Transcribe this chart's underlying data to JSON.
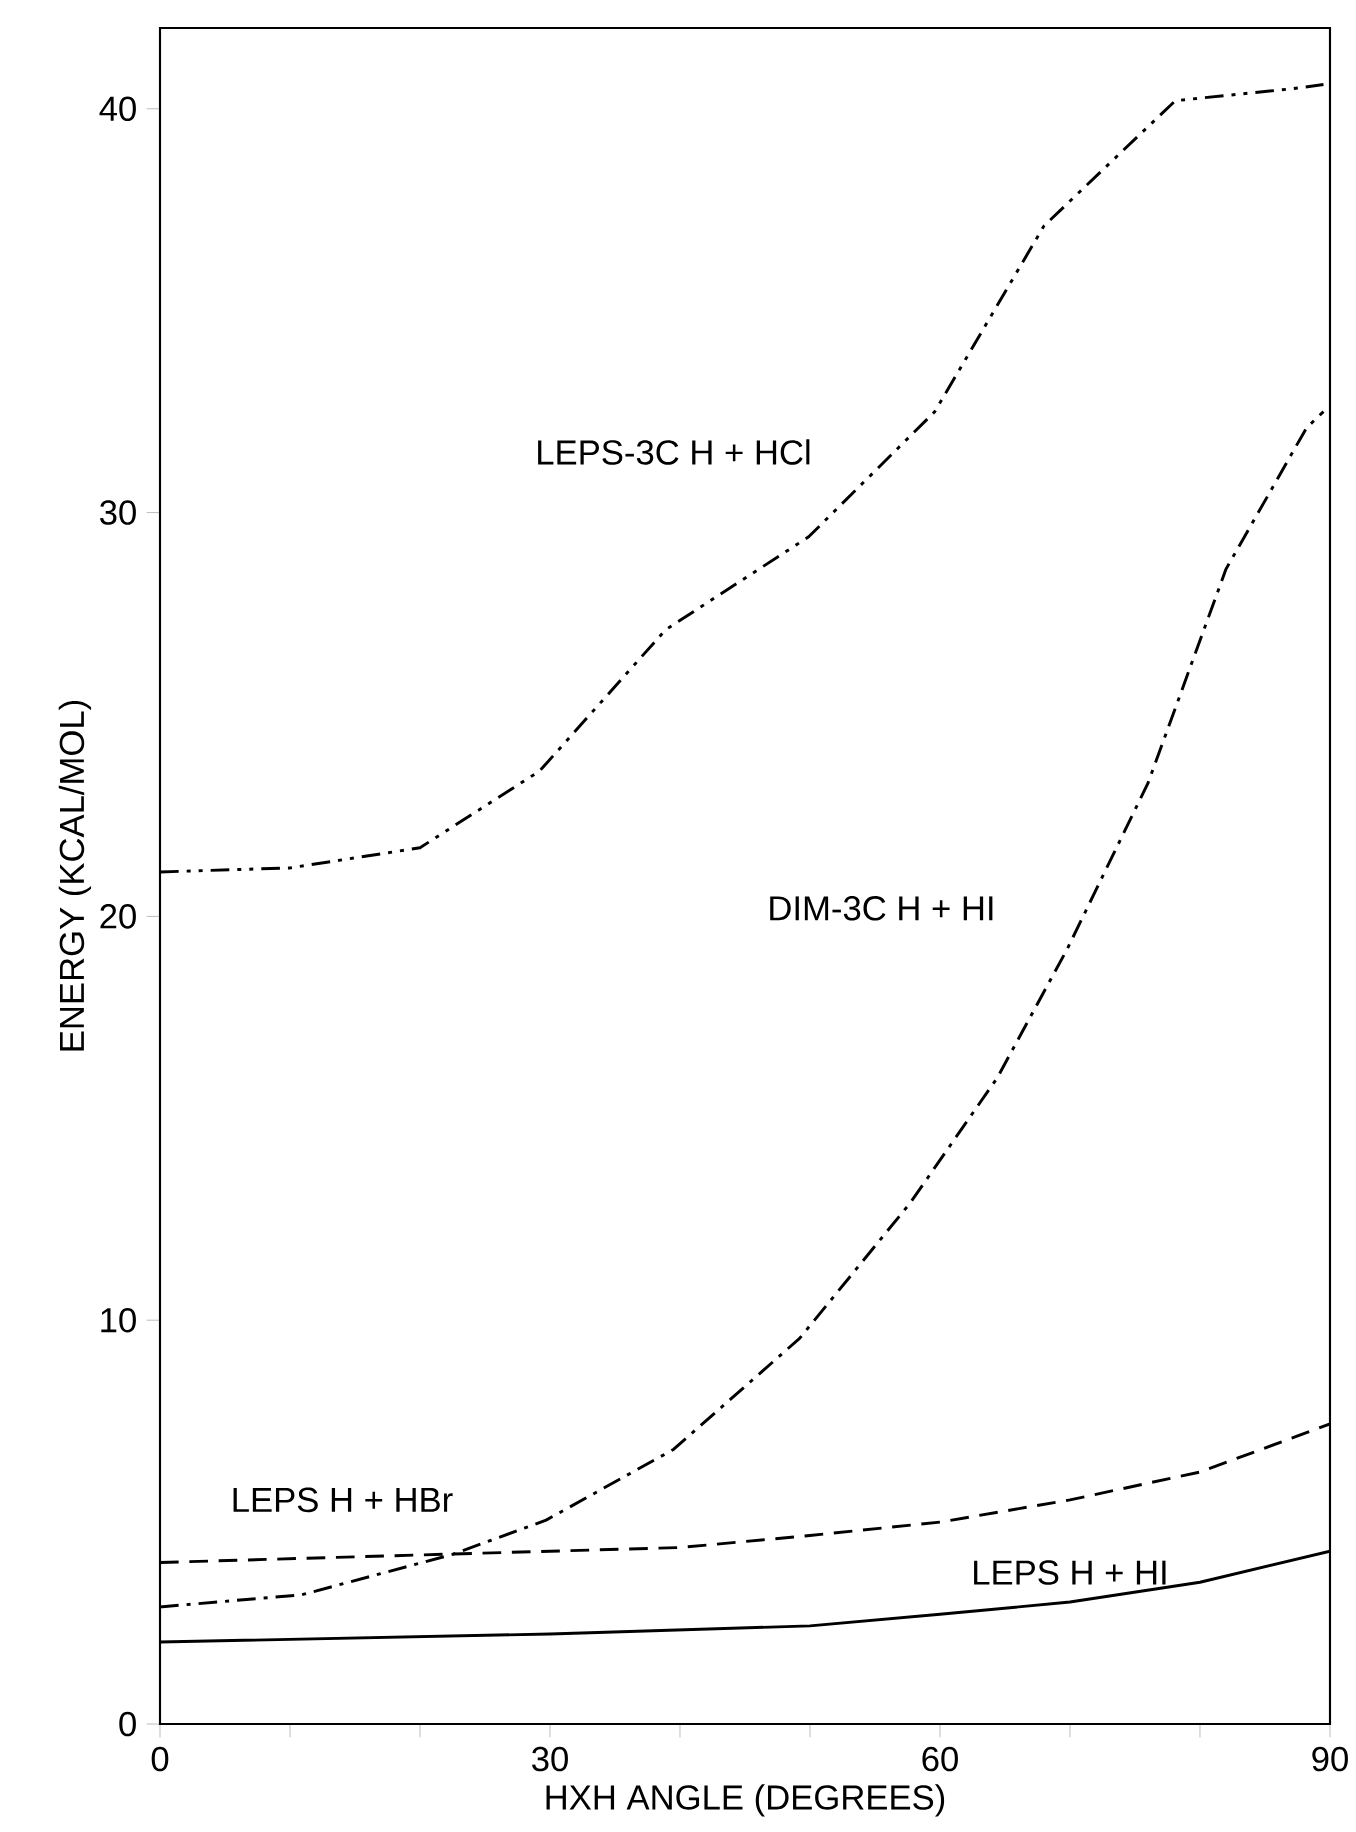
{
  "chart_data": {
    "type": "line",
    "xlabel": "HXH ANGLE (DEGREES)",
    "ylabel": "ENERGY (KCAL/MOL)",
    "xlim": [
      0,
      90
    ],
    "ylim": [
      0,
      42
    ],
    "xticks": [
      0,
      {
        "value": 10,
        "label": null
      },
      {
        "value": 20,
        "label": null
      },
      30,
      {
        "value": 40,
        "label": null
      },
      {
        "value": 50,
        "label": null
      },
      60,
      {
        "value": 70,
        "label": null
      },
      {
        "value": 80,
        "label": null
      },
      90
    ],
    "yticks": [
      0,
      10,
      20,
      30,
      40
    ],
    "grid": false,
    "legend": false,
    "marker": "none",
    "series": [
      {
        "name": "LEPS-3C H + HCl",
        "color": "#000000",
        "line_style": "dashdotdot",
        "x": [
          0,
          10,
          20,
          29.2,
          38.9,
          49.9,
          59.6,
          68,
          78.1,
          87.2,
          89.5
        ],
        "values": [
          21.1,
          21.2,
          21.7,
          23.6,
          27.1,
          29.4,
          32.5,
          37.1,
          40.2,
          40.5,
          40.6
        ]
      },
      {
        "name": "DIM-3C H + HI",
        "color": "#000000",
        "line_style": "dashdot",
        "x": [
          0,
          10.9,
          22.5,
          29.7,
          39.5,
          49.2,
          57.7,
          64.4,
          69.8,
          76,
          82,
          88.2,
          89.5
        ],
        "values": [
          2.9,
          3.2,
          4.2,
          5.05,
          6.8,
          9.55,
          12.9,
          16.0,
          19.2,
          23.3,
          28.6,
          32.1,
          32.5
        ]
      },
      {
        "name": "LEPS H + HBr",
        "color": "#000000",
        "line_style": "dashed",
        "x": [
          0,
          30,
          40,
          50,
          60,
          70,
          80,
          90
        ],
        "values": [
          4.0,
          4.28,
          4.37,
          4.67,
          5.0,
          5.55,
          6.24,
          7.43
        ]
      },
      {
        "name": "LEPS H + HI",
        "color": "#000000",
        "line_style": "solid",
        "x": [
          0,
          30,
          50,
          60,
          70,
          80,
          90
        ],
        "values": [
          2.03,
          2.23,
          2.43,
          2.72,
          3.02,
          3.51,
          4.28
        ]
      }
    ]
  }
}
